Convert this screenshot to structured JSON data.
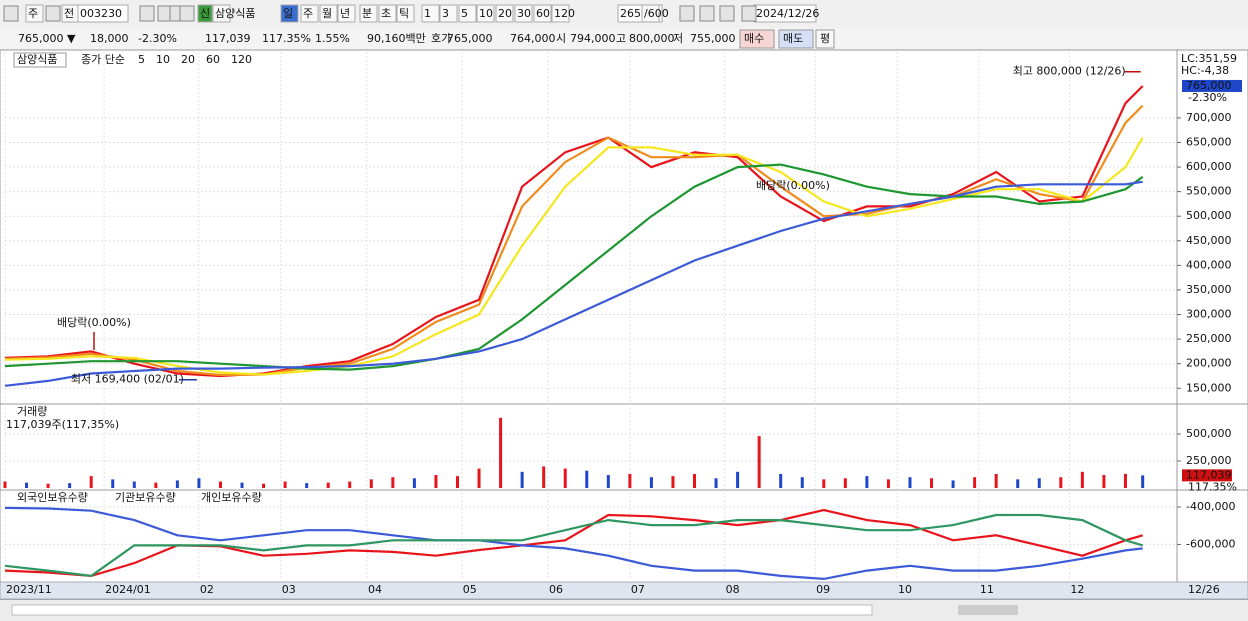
{
  "toolbar": {
    "items": [
      "주",
      "전",
      "003230",
      "신",
      "삼양식품",
      "일",
      "주",
      "월",
      "년",
      "분",
      "초",
      "틱",
      "1",
      "3",
      "5",
      "10",
      "20",
      "30",
      "60",
      "120",
      "265",
      "/600",
      "2024/12/26"
    ]
  },
  "info_bar": {
    "items": [
      "765,000 ▼",
      "18,000",
      "-2.30%",
      "117,039",
      "117.35%",
      "1.55%",
      "90,160백만",
      "호가",
      "765,000",
      "764,000",
      "시",
      "794,000",
      "고",
      "800,000",
      "저",
      "755,000",
      "매수",
      "매도",
      "평"
    ]
  },
  "time_axis": {
    "xlim": [
      0,
      265
    ],
    "labels": [
      {
        "value": 0,
        "label": "2023/11"
      },
      {
        "value": 23,
        "label": "2024/01"
      },
      {
        "value": 45,
        "label": "02"
      },
      {
        "value": 64,
        "label": "03"
      },
      {
        "value": 84,
        "label": "04"
      },
      {
        "value": 106,
        "label": "05"
      },
      {
        "value": 126,
        "label": "06"
      },
      {
        "value": 145,
        "label": "07"
      },
      {
        "value": 167,
        "label": "08"
      },
      {
        "value": 188,
        "label": "09"
      },
      {
        "value": 207,
        "label": "10"
      },
      {
        "value": 226,
        "label": "11"
      },
      {
        "value": 247,
        "label": "12"
      }
    ],
    "end_label": "12/26"
  },
  "chart_data": [
    {
      "type": "line",
      "title": "삼양식품",
      "legend_prefix": "종가 단순",
      "ylim": [
        120000,
        830000
      ],
      "yticks": [
        {
          "value": 150000,
          "label": "150,000"
        },
        {
          "value": 200000,
          "label": "200,000"
        },
        {
          "value": 250000,
          "label": "250,000"
        },
        {
          "value": 300000,
          "label": "300,000"
        },
        {
          "value": 350000,
          "label": "350,000"
        },
        {
          "value": 400000,
          "label": "400,000"
        },
        {
          "value": 450000,
          "label": "450,000"
        },
        {
          "value": 500000,
          "label": "500,000"
        },
        {
          "value": 550000,
          "label": "550,000"
        },
        {
          "value": 600000,
          "label": "600,000"
        },
        {
          "value": 650000,
          "label": "650,000"
        },
        {
          "value": 700000,
          "label": "700,000"
        }
      ],
      "x": [
        0,
        10,
        20,
        30,
        40,
        50,
        60,
        70,
        80,
        90,
        100,
        110,
        120,
        130,
        140,
        150,
        160,
        170,
        180,
        190,
        200,
        210,
        220,
        230,
        240,
        250,
        260,
        264
      ],
      "series": [
        {
          "name": "5",
          "color": "#e8141c",
          "values": [
            212000,
            215000,
            225000,
            200000,
            180000,
            175000,
            180000,
            195000,
            205000,
            240000,
            295000,
            330000,
            560000,
            630000,
            660000,
            600000,
            630000,
            620000,
            540000,
            490000,
            520000,
            520000,
            545000,
            590000,
            530000,
            540000,
            730000,
            765000
          ]
        },
        {
          "name": "10",
          "color": "#f08c1e",
          "values": [
            210000,
            213000,
            220000,
            208000,
            185000,
            177000,
            178000,
            192000,
            200000,
            230000,
            285000,
            320000,
            520000,
            610000,
            660000,
            620000,
            620000,
            625000,
            560000,
            500000,
            505000,
            525000,
            540000,
            575000,
            545000,
            530000,
            690000,
            725000
          ]
        },
        {
          "name": "20",
          "color": "#f5e61e",
          "values": [
            208000,
            210000,
            215000,
            212000,
            195000,
            182000,
            178000,
            185000,
            195000,
            215000,
            260000,
            300000,
            440000,
            560000,
            640000,
            640000,
            625000,
            625000,
            590000,
            530000,
            500000,
            515000,
            535000,
            555000,
            555000,
            530000,
            600000,
            660000
          ]
        },
        {
          "name": "60",
          "color": "#1e9632",
          "values": [
            195000,
            200000,
            205000,
            205000,
            205000,
            200000,
            195000,
            190000,
            188000,
            195000,
            210000,
            230000,
            290000,
            360000,
            430000,
            500000,
            560000,
            600000,
            605000,
            585000,
            560000,
            545000,
            540000,
            540000,
            525000,
            530000,
            555000,
            580000
          ]
        },
        {
          "name": "120",
          "color": "#3c5ad7",
          "values": [
            155000,
            165000,
            180000,
            185000,
            190000,
            190000,
            192000,
            193000,
            195000,
            200000,
            210000,
            225000,
            250000,
            290000,
            330000,
            370000,
            410000,
            440000,
            470000,
            495000,
            510000,
            525000,
            540000,
            560000,
            565000,
            565000,
            565000,
            570000
          ]
        }
      ],
      "high": {
        "label": "최고 800,000 (12/26)",
        "value": 800000,
        "x": 264
      },
      "low": {
        "label": "최저 169,400 (02/01)",
        "value": 169400,
        "x": 45
      },
      "dividend_label": "배당락(0.00%)",
      "right_labels": [
        "LC:351,59",
        "HC:-4,38"
      ],
      "last_price": {
        "value": 765000,
        "label": "765,000"
      },
      "change_label": "-2.30%"
    },
    {
      "type": "bar",
      "title": "거래량",
      "subtitle": "117,039주(117,35%)",
      "ylim": [
        0,
        750000
      ],
      "yticks": [
        {
          "value": 250000,
          "label": "250,000"
        },
        {
          "value": 500000,
          "label": "500,000"
        }
      ],
      "x": [
        0,
        5,
        10,
        15,
        20,
        25,
        30,
        35,
        40,
        45,
        50,
        55,
        60,
        65,
        70,
        75,
        80,
        85,
        90,
        95,
        100,
        105,
        110,
        115,
        120,
        125,
        130,
        135,
        140,
        145,
        150,
        155,
        160,
        165,
        170,
        175,
        180,
        185,
        190,
        195,
        200,
        205,
        210,
        215,
        220,
        225,
        230,
        235,
        240,
        245,
        250,
        255,
        260,
        264
      ],
      "values": [
        60000,
        50000,
        40000,
        45000,
        110000,
        80000,
        60000,
        50000,
        70000,
        90000,
        60000,
        50000,
        40000,
        60000,
        45000,
        50000,
        60000,
        80000,
        100000,
        90000,
        120000,
        110000,
        180000,
        650000,
        150000,
        200000,
        180000,
        160000,
        120000,
        130000,
        100000,
        110000,
        130000,
        90000,
        150000,
        480000,
        130000,
        100000,
        80000,
        90000,
        110000,
        80000,
        100000,
        90000,
        70000,
        100000,
        130000,
        80000,
        90000,
        100000,
        150000,
        120000,
        130000,
        117039
      ],
      "up_color": "#e8141c",
      "down_color": "#1e46c8",
      "up": [
        true,
        false,
        true,
        false,
        true,
        false,
        false,
        true,
        false,
        false,
        true,
        false,
        true,
        true,
        false,
        true,
        true,
        true,
        true,
        false,
        true,
        true,
        true,
        true,
        false,
        true,
        true,
        false,
        false,
        true,
        false,
        true,
        true,
        false,
        false,
        true,
        false,
        false,
        true,
        true,
        false,
        true,
        false,
        true,
        false,
        true,
        true,
        false,
        false,
        true,
        true,
        true,
        true,
        false
      ],
      "last_value": {
        "value": 117039,
        "label": "117,039"
      },
      "last_pct": "117.35%"
    },
    {
      "type": "line",
      "ylim": [
        -790000,
        -320000
      ],
      "yticks": [
        {
          "value": -400000,
          "label": "-400,000"
        },
        {
          "value": -600000,
          "label": "-600,000"
        }
      ],
      "x": [
        0,
        10,
        20,
        30,
        40,
        50,
        60,
        70,
        80,
        90,
        100,
        110,
        120,
        130,
        140,
        150,
        160,
        170,
        180,
        190,
        200,
        210,
        220,
        230,
        240,
        250,
        260,
        264
      ],
      "series": [
        {
          "name": "외국인보유수량",
          "color": "#e8141c",
          "values": [
            -740000,
            -750000,
            -768000,
            -700000,
            -605000,
            -610000,
            -660000,
            -650000,
            -632000,
            -640000,
            -660000,
            -630000,
            -605000,
            -578000,
            -443000,
            -450000,
            -470000,
            -497000,
            -470000,
            -416000,
            -470000,
            -497000,
            -578000,
            -551000,
            -605000,
            -660000,
            -578000,
            -551000
          ]
        },
        {
          "name": "기관보유수량",
          "color": "#3c5ad7",
          "values": [
            -405000,
            -408000,
            -420000,
            -470000,
            -551000,
            -578000,
            -551000,
            -524000,
            -524000,
            -551000,
            -578000,
            -578000,
            -605000,
            -621000,
            -660000,
            -714000,
            -740000,
            -740000,
            -768000,
            -784000,
            -740000,
            -714000,
            -740000,
            -740000,
            -714000,
            -676000,
            -632000,
            -621000
          ]
        },
        {
          "name": "개인보유수량",
          "color": "#2e9660",
          "values": [
            -714000,
            -740000,
            -768000,
            -605000,
            -605000,
            -605000,
            -632000,
            -605000,
            -605000,
            -578000,
            -578000,
            -578000,
            -578000,
            -524000,
            -470000,
            -497000,
            -497000,
            -470000,
            -470000,
            -497000,
            -524000,
            -524000,
            -497000,
            -443000,
            -443000,
            -470000,
            -578000,
            -605000
          ]
        }
      ]
    }
  ]
}
